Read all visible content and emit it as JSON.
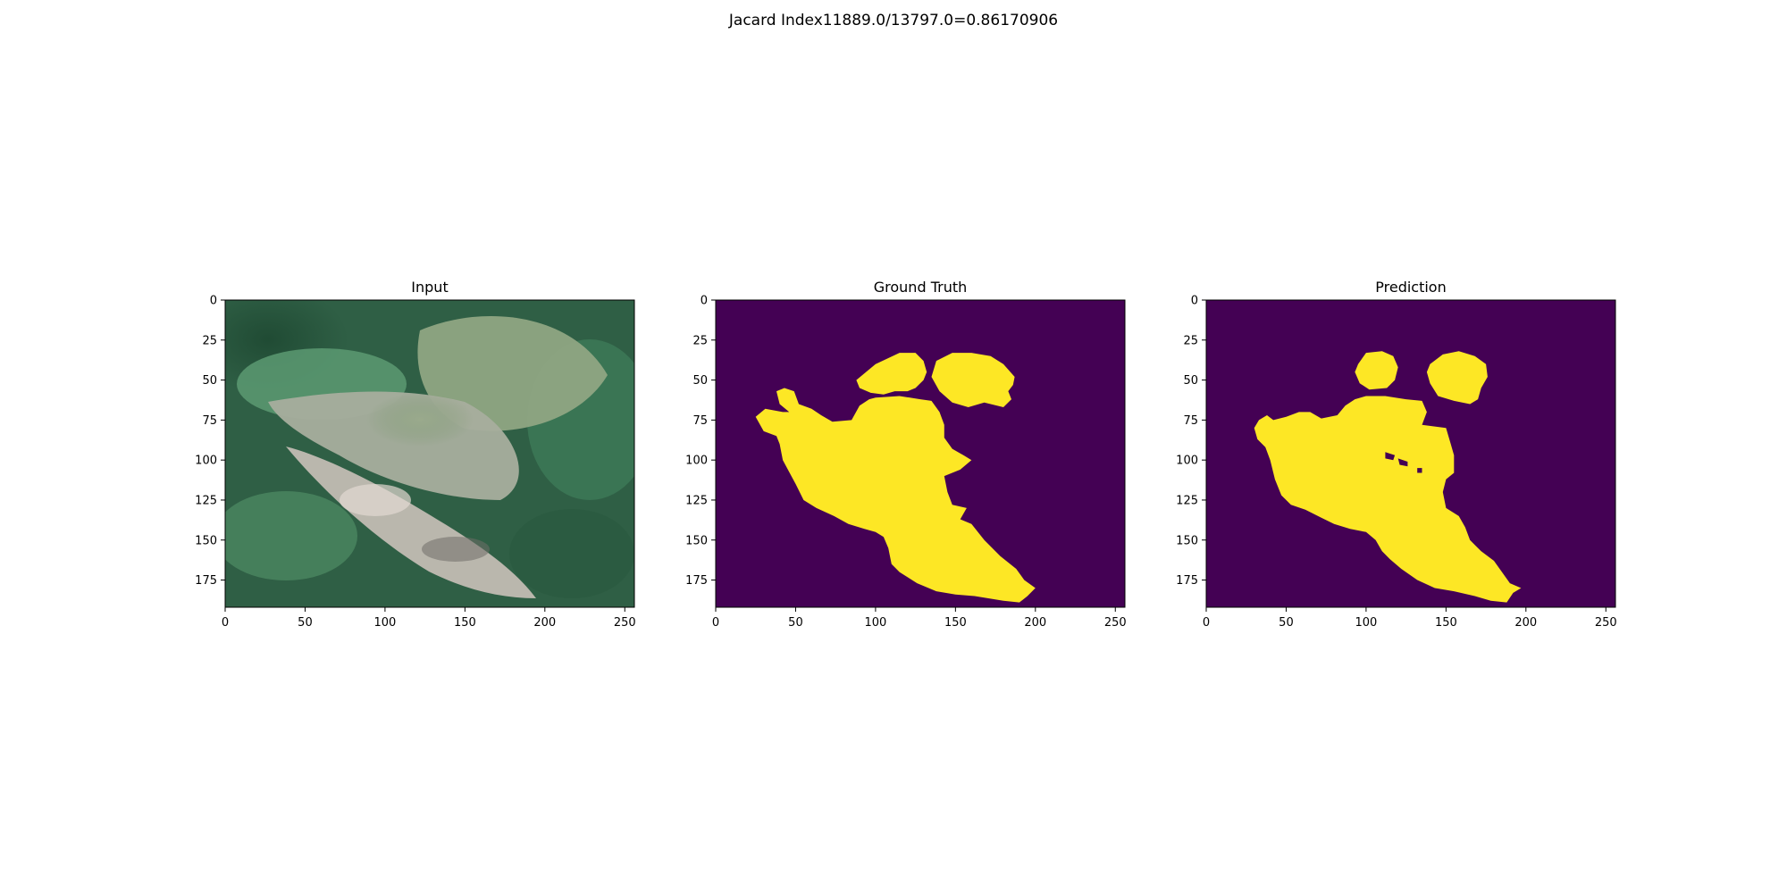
{
  "figure": {
    "suptitle": "Jacard Index11889.0/13797.0=0.86170906"
  },
  "colors": {
    "background": "#ffffff",
    "mask_background": "#440154",
    "mask_foreground": "#fde725",
    "axis": "#000000"
  },
  "chart_data": [
    {
      "type": "image",
      "title": "Input",
      "image_kind": "rgb photo of diseased leaf",
      "xlim": [
        0,
        256
      ],
      "ylim": [
        192,
        0
      ],
      "xticks": [
        0,
        50,
        100,
        150,
        200,
        250
      ],
      "yticks": [
        0,
        25,
        50,
        75,
        100,
        125,
        150,
        175
      ]
    },
    {
      "type": "heatmap",
      "title": "Ground Truth",
      "image_kind": "binary mask",
      "colormap": "viridis",
      "xlim": [
        0,
        256
      ],
      "ylim": [
        192,
        0
      ],
      "xticks": [
        0,
        50,
        100,
        150,
        200,
        250
      ],
      "yticks": [
        0,
        25,
        50,
        75,
        100,
        125,
        150,
        175
      ],
      "regions": [
        [
          [
            88,
            50
          ],
          [
            100,
            40
          ],
          [
            115,
            33
          ],
          [
            125,
            33
          ],
          [
            130,
            38
          ],
          [
            132,
            45
          ],
          [
            130,
            50
          ],
          [
            125,
            55
          ],
          [
            120,
            57
          ],
          [
            112,
            57
          ],
          [
            105,
            59
          ],
          [
            97,
            58
          ],
          [
            90,
            55
          ]
        ],
        [
          [
            138,
            38
          ],
          [
            148,
            33
          ],
          [
            160,
            33
          ],
          [
            172,
            35
          ],
          [
            180,
            40
          ],
          [
            187,
            48
          ],
          [
            186,
            53
          ],
          [
            183,
            57
          ],
          [
            185,
            62
          ],
          [
            180,
            67
          ],
          [
            168,
            64
          ],
          [
            158,
            67
          ],
          [
            148,
            64
          ],
          [
            140,
            57
          ],
          [
            135,
            48
          ]
        ],
        [
          [
            96,
            62
          ],
          [
            100,
            61
          ],
          [
            115,
            60
          ],
          [
            128,
            62
          ],
          [
            135,
            63
          ],
          [
            140,
            70
          ],
          [
            143,
            78
          ],
          [
            143,
            86
          ],
          [
            148,
            93
          ],
          [
            155,
            97
          ],
          [
            160,
            100
          ],
          [
            153,
            106
          ],
          [
            143,
            110
          ],
          [
            145,
            120
          ],
          [
            148,
            128
          ],
          [
            157,
            130
          ],
          [
            153,
            137
          ],
          [
            160,
            140
          ],
          [
            168,
            150
          ],
          [
            178,
            160
          ],
          [
            188,
            168
          ],
          [
            193,
            175
          ],
          [
            200,
            180
          ],
          [
            195,
            185
          ],
          [
            190,
            189
          ],
          [
            180,
            188
          ],
          [
            162,
            185
          ],
          [
            150,
            184
          ],
          [
            138,
            182
          ],
          [
            126,
            177
          ],
          [
            115,
            170
          ],
          [
            110,
            165
          ],
          [
            108,
            155
          ],
          [
            105,
            148
          ],
          [
            100,
            145
          ],
          [
            93,
            143
          ],
          [
            83,
            140
          ],
          [
            74,
            135
          ],
          [
            63,
            130
          ],
          [
            55,
            125
          ],
          [
            50,
            115
          ],
          [
            42,
            100
          ],
          [
            40,
            90
          ],
          [
            38,
            85
          ],
          [
            30,
            82
          ],
          [
            25,
            73
          ],
          [
            31,
            68
          ],
          [
            42,
            70
          ],
          [
            46,
            70
          ],
          [
            40,
            65
          ],
          [
            38,
            57
          ],
          [
            43,
            55
          ],
          [
            49,
            57
          ],
          [
            52,
            65
          ],
          [
            60,
            68
          ],
          [
            66,
            72
          ],
          [
            73,
            76
          ],
          [
            85,
            75
          ],
          [
            90,
            66
          ]
        ]
      ]
    },
    {
      "type": "heatmap",
      "title": "Prediction",
      "image_kind": "binary mask",
      "colormap": "viridis",
      "xlim": [
        0,
        256
      ],
      "ylim": [
        192,
        0
      ],
      "xticks": [
        0,
        50,
        100,
        150,
        200,
        250
      ],
      "yticks": [
        0,
        25,
        50,
        75,
        100,
        125,
        150,
        175
      ],
      "regions": [
        [
          [
            95,
            40
          ],
          [
            100,
            33
          ],
          [
            110,
            32
          ],
          [
            117,
            35
          ],
          [
            120,
            42
          ],
          [
            118,
            50
          ],
          [
            113,
            55
          ],
          [
            102,
            56
          ],
          [
            96,
            52
          ],
          [
            93,
            45
          ]
        ],
        [
          [
            140,
            40
          ],
          [
            148,
            34
          ],
          [
            158,
            32
          ],
          [
            168,
            35
          ],
          [
            175,
            40
          ],
          [
            176,
            48
          ],
          [
            172,
            55
          ],
          [
            170,
            62
          ],
          [
            165,
            65
          ],
          [
            155,
            63
          ],
          [
            145,
            60
          ],
          [
            140,
            52
          ],
          [
            138,
            45
          ]
        ],
        [
          [
            93,
            62
          ],
          [
            100,
            60
          ],
          [
            112,
            60
          ],
          [
            125,
            62
          ],
          [
            135,
            63
          ],
          [
            138,
            70
          ],
          [
            135,
            78
          ],
          [
            150,
            80
          ],
          [
            153,
            90
          ],
          [
            155,
            97
          ],
          [
            155,
            108
          ],
          [
            150,
            112
          ],
          [
            148,
            120
          ],
          [
            150,
            130
          ],
          [
            158,
            135
          ],
          [
            162,
            142
          ],
          [
            165,
            150
          ],
          [
            172,
            157
          ],
          [
            180,
            163
          ],
          [
            185,
            170
          ],
          [
            190,
            177
          ],
          [
            197,
            180
          ],
          [
            192,
            183
          ],
          [
            188,
            189
          ],
          [
            178,
            188
          ],
          [
            168,
            185
          ],
          [
            155,
            182
          ],
          [
            143,
            180
          ],
          [
            132,
            175
          ],
          [
            122,
            168
          ],
          [
            115,
            162
          ],
          [
            110,
            157
          ],
          [
            106,
            150
          ],
          [
            100,
            145
          ],
          [
            90,
            143
          ],
          [
            80,
            140
          ],
          [
            72,
            136
          ],
          [
            62,
            131
          ],
          [
            53,
            128
          ],
          [
            47,
            122
          ],
          [
            43,
            112
          ],
          [
            40,
            100
          ],
          [
            37,
            92
          ],
          [
            32,
            87
          ],
          [
            30,
            80
          ],
          [
            33,
            75
          ],
          [
            38,
            72
          ],
          [
            42,
            75
          ],
          [
            50,
            73
          ],
          [
            58,
            70
          ],
          [
            65,
            70
          ],
          [
            72,
            74
          ],
          [
            82,
            72
          ],
          [
            87,
            66
          ]
        ]
      ],
      "holes": [
        [
          [
            112,
            95
          ],
          [
            118,
            97
          ],
          [
            117,
            100
          ],
          [
            112,
            99
          ]
        ],
        [
          [
            120,
            99
          ],
          [
            126,
            101
          ],
          [
            126,
            104
          ],
          [
            121,
            103
          ]
        ],
        [
          [
            132,
            105
          ],
          [
            135,
            105
          ],
          [
            135,
            108
          ],
          [
            132,
            108
          ]
        ]
      ]
    }
  ]
}
